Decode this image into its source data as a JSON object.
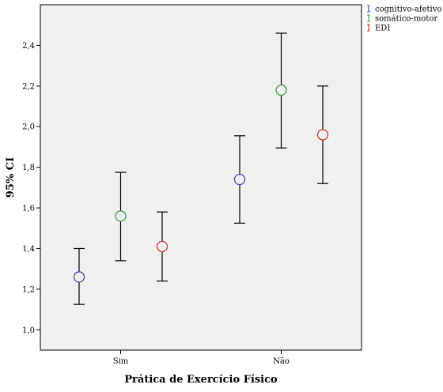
{
  "chart_data": {
    "type": "errorbar",
    "title": "",
    "xlabel": "Prática de Exercício Físico",
    "ylabel": "95% CI",
    "categories": [
      "Sim",
      "Não"
    ],
    "ylim": [
      0.9,
      2.6
    ],
    "yticks": [
      "1,0",
      "1,2",
      "1,4",
      "1,6",
      "1,8",
      "2,0",
      "2,2",
      "2,4"
    ],
    "ytick_values": [
      1.0,
      1.2,
      1.4,
      1.6,
      1.8,
      2.0,
      2.2,
      2.4
    ],
    "grid": false,
    "legend_position": "top-right-outside",
    "series": [
      {
        "name": "cognitivo-afetivo",
        "color": "#4a50a0",
        "mean": [
          1.26,
          1.74
        ],
        "lower": [
          1.125,
          1.525
        ],
        "upper": [
          1.4,
          1.955
        ]
      },
      {
        "name": "somático-motor",
        "color": "#3aa04a",
        "mean": [
          1.56,
          2.18
        ],
        "lower": [
          1.34,
          1.895
        ],
        "upper": [
          1.775,
          2.46
        ]
      },
      {
        "name": "EDI",
        "color": "#d03a3a",
        "mean": [
          1.41,
          1.96
        ],
        "lower": [
          1.24,
          1.72
        ],
        "upper": [
          1.58,
          2.2
        ]
      }
    ]
  }
}
